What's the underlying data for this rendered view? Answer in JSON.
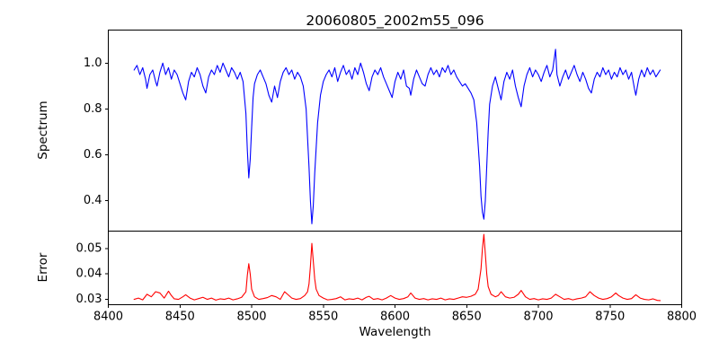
{
  "figure": {
    "background": "#ffffff",
    "text_color": "#000000",
    "spine_color": "#000000"
  },
  "chart_data": {
    "type": "line",
    "title": "20060805_2002m55_096",
    "xlabel": "Wavelength",
    "xlim": [
      8400,
      8800
    ],
    "grid": false,
    "legend": null,
    "xticks": {
      "values": [
        8400,
        8450,
        8500,
        8550,
        8600,
        8650,
        8700,
        8750,
        8800
      ],
      "labels": [
        "8400",
        "8450",
        "8500",
        "8550",
        "8600",
        "8650",
        "8700",
        "8750",
        "8800"
      ]
    },
    "panels": [
      {
        "name": "spectrum",
        "ylabel": "Spectrum",
        "ylim": [
          0.268,
          1.144
        ],
        "yticks": {
          "values": [
            0.4,
            0.6,
            0.8,
            1.0
          ],
          "labels": [
            "0.4",
            "0.6",
            "0.8",
            "1.0"
          ]
        },
        "line_color": "#0000ff",
        "x": [
          8418,
          8420,
          8422,
          8424,
          8426,
          8427,
          8429,
          8431,
          8433,
          8434,
          8436,
          8438,
          8440,
          8442,
          8444,
          8446,
          8448,
          8450,
          8452,
          8454,
          8456,
          8458,
          8460,
          8462,
          8464,
          8466,
          8468,
          8470,
          8472,
          8474,
          8476,
          8478,
          8480,
          8482,
          8484,
          8486,
          8488,
          8490,
          8492,
          8494,
          8496,
          8497,
          8498,
          8499,
          8500,
          8501,
          8502,
          8504,
          8506,
          8508,
          8510,
          8512,
          8514,
          8516,
          8518,
          8520,
          8522,
          8524,
          8526,
          8528,
          8530,
          8532,
          8534,
          8536,
          8538,
          8540,
          8541,
          8542,
          8543,
          8544,
          8546,
          8548,
          8550,
          8552,
          8554,
          8556,
          8558,
          8560,
          8562,
          8564,
          8566,
          8568,
          8570,
          8572,
          8574,
          8576,
          8578,
          8580,
          8582,
          8584,
          8586,
          8588,
          8590,
          8592,
          8594,
          8596,
          8598,
          8600,
          8602,
          8604,
          8606,
          8608,
          8610,
          8611,
          8613,
          8615,
          8617,
          8619,
          8621,
          8623,
          8625,
          8627,
          8629,
          8631,
          8633,
          8635,
          8637,
          8639,
          8641,
          8643,
          8645,
          8647,
          8649,
          8651,
          8653,
          8655,
          8657,
          8659,
          8660,
          8661,
          8662,
          8663,
          8664,
          8665,
          8666,
          8668,
          8670,
          8672,
          8674,
          8676,
          8678,
          8680,
          8682,
          8684,
          8686,
          8688,
          8690,
          8692,
          8694,
          8696,
          8698,
          8700,
          8702,
          8704,
          8706,
          8708,
          8710,
          8712,
          8713,
          8715,
          8717,
          8719,
          8721,
          8723,
          8725,
          8727,
          8729,
          8731,
          8733,
          8735,
          8737,
          8739,
          8741,
          8743,
          8745,
          8747,
          8749,
          8751,
          8753,
          8755,
          8757,
          8759,
          8761,
          8763,
          8765,
          8767,
          8768,
          8770,
          8772,
          8774,
          8776,
          8778,
          8780,
          8782,
          8784,
          8785
        ],
        "y": [
          0.97,
          0.99,
          0.95,
          0.98,
          0.93,
          0.89,
          0.95,
          0.97,
          0.92,
          0.9,
          0.96,
          1.0,
          0.95,
          0.98,
          0.93,
          0.97,
          0.95,
          0.91,
          0.87,
          0.84,
          0.92,
          0.96,
          0.94,
          0.98,
          0.95,
          0.9,
          0.87,
          0.94,
          0.97,
          0.95,
          0.99,
          0.96,
          1.0,
          0.97,
          0.94,
          0.98,
          0.96,
          0.93,
          0.96,
          0.92,
          0.78,
          0.62,
          0.5,
          0.58,
          0.72,
          0.85,
          0.91,
          0.95,
          0.97,
          0.94,
          0.91,
          0.86,
          0.83,
          0.9,
          0.85,
          0.92,
          0.96,
          0.98,
          0.95,
          0.97,
          0.93,
          0.96,
          0.94,
          0.9,
          0.8,
          0.55,
          0.4,
          0.3,
          0.38,
          0.52,
          0.74,
          0.86,
          0.92,
          0.95,
          0.97,
          0.94,
          0.98,
          0.92,
          0.96,
          0.99,
          0.95,
          0.97,
          0.93,
          0.98,
          0.95,
          1.0,
          0.96,
          0.91,
          0.88,
          0.94,
          0.97,
          0.95,
          0.98,
          0.94,
          0.91,
          0.88,
          0.85,
          0.92,
          0.96,
          0.93,
          0.97,
          0.9,
          0.89,
          0.86,
          0.93,
          0.97,
          0.94,
          0.91,
          0.9,
          0.95,
          0.98,
          0.95,
          0.97,
          0.94,
          0.98,
          0.96,
          0.99,
          0.95,
          0.97,
          0.94,
          0.92,
          0.9,
          0.91,
          0.89,
          0.87,
          0.84,
          0.74,
          0.55,
          0.42,
          0.35,
          0.32,
          0.4,
          0.55,
          0.7,
          0.82,
          0.9,
          0.94,
          0.89,
          0.84,
          0.92,
          0.96,
          0.93,
          0.97,
          0.9,
          0.85,
          0.81,
          0.9,
          0.95,
          0.98,
          0.94,
          0.97,
          0.95,
          0.92,
          0.96,
          0.99,
          0.94,
          0.97,
          1.06,
          0.95,
          0.9,
          0.94,
          0.97,
          0.93,
          0.96,
          0.99,
          0.95,
          0.92,
          0.96,
          0.93,
          0.89,
          0.87,
          0.93,
          0.96,
          0.94,
          0.98,
          0.95,
          0.97,
          0.93,
          0.96,
          0.94,
          0.98,
          0.95,
          0.97,
          0.93,
          0.96,
          0.89,
          0.86,
          0.93,
          0.97,
          0.94,
          0.98,
          0.95,
          0.97,
          0.94,
          0.96,
          0.97
        ]
      },
      {
        "name": "error",
        "ylabel": "Error",
        "ylim": [
          0.0279,
          0.0568
        ],
        "yticks": {
          "values": [
            0.03,
            0.04,
            0.05
          ],
          "labels": [
            "0.03",
            "0.04",
            "0.05"
          ]
        },
        "line_color": "#ff0000",
        "x": [
          8418,
          8421,
          8424,
          8427,
          8430,
          8433,
          8436,
          8439,
          8442,
          8444,
          8446,
          8449,
          8452,
          8454,
          8457,
          8460,
          8463,
          8466,
          8469,
          8472,
          8475,
          8478,
          8481,
          8484,
          8487,
          8490,
          8493,
          8496,
          8497,
          8498,
          8499,
          8500,
          8502,
          8505,
          8508,
          8511,
          8514,
          8517,
          8520,
          8523,
          8525,
          8528,
          8531,
          8534,
          8537,
          8539,
          8540,
          8541,
          8542,
          8543,
          8544,
          8545,
          8547,
          8550,
          8553,
          8556,
          8559,
          8562,
          8565,
          8568,
          8571,
          8574,
          8577,
          8580,
          8582,
          8585,
          8588,
          8591,
          8594,
          8597,
          8600,
          8603,
          8606,
          8609,
          8611,
          8614,
          8617,
          8620,
          8623,
          8626,
          8629,
          8632,
          8635,
          8638,
          8641,
          8644,
          8647,
          8650,
          8653,
          8656,
          8658,
          8660,
          8661,
          8662,
          8663,
          8664,
          8665,
          8667,
          8670,
          8672,
          8674,
          8677,
          8680,
          8683,
          8686,
          8688,
          8691,
          8694,
          8697,
          8700,
          8703,
          8706,
          8709,
          8712,
          8715,
          8718,
          8721,
          8724,
          8727,
          8730,
          8733,
          8736,
          8739,
          8742,
          8745,
          8748,
          8751,
          8754,
          8756,
          8759,
          8762,
          8765,
          8768,
          8771,
          8774,
          8777,
          8780,
          8783,
          8785
        ],
        "y": [
          0.03,
          0.0305,
          0.0298,
          0.032,
          0.031,
          0.033,
          0.0325,
          0.0305,
          0.0332,
          0.0315,
          0.0302,
          0.03,
          0.031,
          0.0318,
          0.0305,
          0.0298,
          0.0303,
          0.0308,
          0.03,
          0.0305,
          0.0297,
          0.0302,
          0.03,
          0.0305,
          0.0298,
          0.0302,
          0.0308,
          0.033,
          0.0395,
          0.044,
          0.04,
          0.034,
          0.031,
          0.03,
          0.0303,
          0.0307,
          0.0315,
          0.031,
          0.03,
          0.033,
          0.032,
          0.0305,
          0.03,
          0.0303,
          0.0315,
          0.033,
          0.036,
          0.043,
          0.052,
          0.045,
          0.038,
          0.034,
          0.0315,
          0.0305,
          0.0298,
          0.03,
          0.0303,
          0.031,
          0.0298,
          0.0302,
          0.03,
          0.0305,
          0.0298,
          0.0308,
          0.0312,
          0.03,
          0.0303,
          0.0298,
          0.0305,
          0.0315,
          0.0305,
          0.03,
          0.0303,
          0.031,
          0.0325,
          0.0305,
          0.03,
          0.0303,
          0.0298,
          0.0302,
          0.03,
          0.0305,
          0.0298,
          0.0302,
          0.03,
          0.0305,
          0.031,
          0.0308,
          0.0312,
          0.032,
          0.034,
          0.042,
          0.05,
          0.0555,
          0.048,
          0.04,
          0.035,
          0.032,
          0.031,
          0.0315,
          0.033,
          0.031,
          0.0305,
          0.0308,
          0.032,
          0.0335,
          0.031,
          0.03,
          0.0303,
          0.0298,
          0.0302,
          0.03,
          0.0305,
          0.032,
          0.031,
          0.03,
          0.0303,
          0.0298,
          0.0302,
          0.0305,
          0.031,
          0.033,
          0.0315,
          0.0305,
          0.03,
          0.0303,
          0.031,
          0.0325,
          0.0315,
          0.0305,
          0.03,
          0.0303,
          0.0318,
          0.0305,
          0.03,
          0.0298,
          0.0302,
          0.0296,
          0.0295
        ]
      }
    ]
  }
}
